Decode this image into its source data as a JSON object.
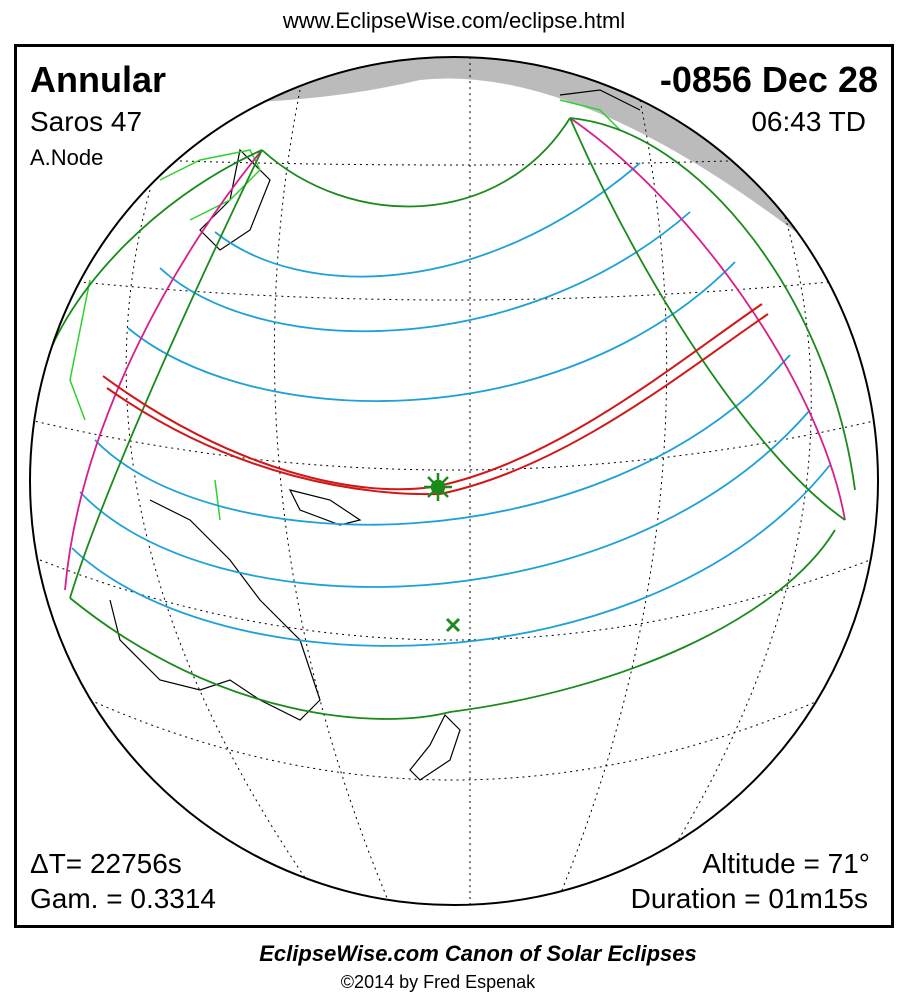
{
  "header": {
    "url": "www.EclipseWise.com/eclipse.html"
  },
  "panel": {
    "eclipse_type": "Annular",
    "date": "-0856 Dec 28",
    "saros": "Saros  47",
    "time": "06:43 TD",
    "node": "A.Node",
    "delta_t": "ΔT=  22756s",
    "gamma": "Gam. = 0.3314",
    "altitude": "Altitude = 71°",
    "duration": "Duration = 01m15s"
  },
  "footer": {
    "title": "EclipseWise.com Canon of Solar Eclipses",
    "copyright": "©2014 by Fred Espenak"
  }
}
